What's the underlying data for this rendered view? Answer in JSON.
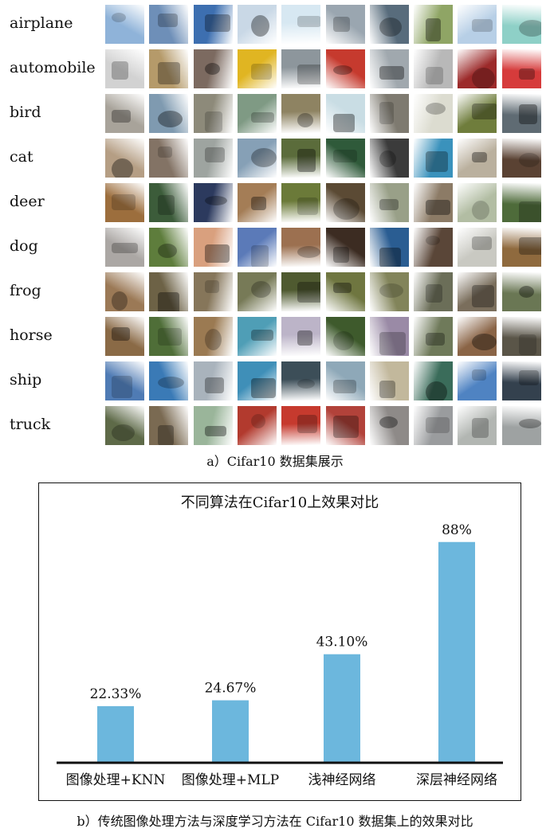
{
  "grid": {
    "classes": [
      "airplane",
      "automobile",
      "bird",
      "cat",
      "deer",
      "dog",
      "frog",
      "horse",
      "ship",
      "truck"
    ],
    "caption": "a）Cifar10 数据集展示",
    "palettes": [
      [
        "#8fb3d9",
        "#6e8fb8",
        "#3d6fb0",
        "#c9d8e6",
        "#d7e8f2",
        "#9aa6b0",
        "#586c7c",
        "#8fa565",
        "#b7cfe6",
        "#8ed0c7"
      ],
      [
        "#d2d2d2",
        "#b59a6a",
        "#7c6a60",
        "#e0b522",
        "#8d969c",
        "#c63a2e",
        "#a0a8ae",
        "#b8b8b8",
        "#9c2a2a",
        "#d63b3b"
      ],
      [
        "#a8a39a",
        "#7f9ab0",
        "#8d8a7a",
        "#7f9a84",
        "#8e8362",
        "#c9dde4",
        "#7e7a70",
        "#dcdcd0",
        "#6f7d3c",
        "#5f6b73"
      ],
      [
        "#b59e84",
        "#837365",
        "#9ea4a0",
        "#86a0b6",
        "#5b6c3b",
        "#2f5a3a",
        "#3b3b3b",
        "#3a92bc",
        "#bab09e",
        "#5a4233"
      ],
      [
        "#9c6e3d",
        "#3c5c3a",
        "#2c3a5e",
        "#a47d56",
        "#6b7a39",
        "#5b4a34",
        "#99a088",
        "#8c7b66",
        "#b2bda3",
        "#4e6b3a"
      ],
      [
        "#aba7a4",
        "#5e7d3c",
        "#d9a07e",
        "#5b7ab8",
        "#9c7050",
        "#3c2c22",
        "#2a5d92",
        "#5a4638",
        "#c9c9c2",
        "#8f6a3e"
      ],
      [
        "#9b7956",
        "#6d6246",
        "#86765a",
        "#777a57",
        "#4f5a30",
        "#6f7640",
        "#82845a",
        "#6b6e58",
        "#7a6e5c",
        "#6a7754"
      ],
      [
        "#8a6a46",
        "#4f6e38",
        "#9b7a52",
        "#4f9eb6",
        "#bcb4c8",
        "#3e5a2c",
        "#9a8aa6",
        "#6f7a5a",
        "#8a6446",
        "#5a5548"
      ],
      [
        "#4f7bb4",
        "#3a7ab6",
        "#a9b3bc",
        "#3f8fb8",
        "#3c4e58",
        "#8ea8b8",
        "#c2b89c",
        "#3a6c5a",
        "#4f83c2",
        "#34414e"
      ],
      [
        "#5e6a48",
        "#7a6a52",
        "#9ab59a",
        "#b23a2e",
        "#c63a2e",
        "#b2423a",
        "#8e8a88",
        "#9a9c9e",
        "#b2b6b2",
        "#9ea2a2"
      ]
    ]
  },
  "chart_data": {
    "type": "bar",
    "title": "不同算法在Cifar10上效果对比",
    "categories": [
      "图像处理+KNN",
      "图像处理+MLP",
      "浅神经网络",
      "深层神经网络"
    ],
    "values": [
      22.33,
      24.67,
      43.1,
      88
    ],
    "value_labels": [
      "22.33%",
      "24.67%",
      "43.10%",
      "88%"
    ],
    "ylim": [
      0,
      100
    ],
    "grid": false,
    "bar_color": "#6cb7dd",
    "xlabel": "",
    "ylabel": ""
  },
  "caption_b": "b）传统图像处理方法与深度学习方法在 Cifar10 数据集上的效果对比"
}
